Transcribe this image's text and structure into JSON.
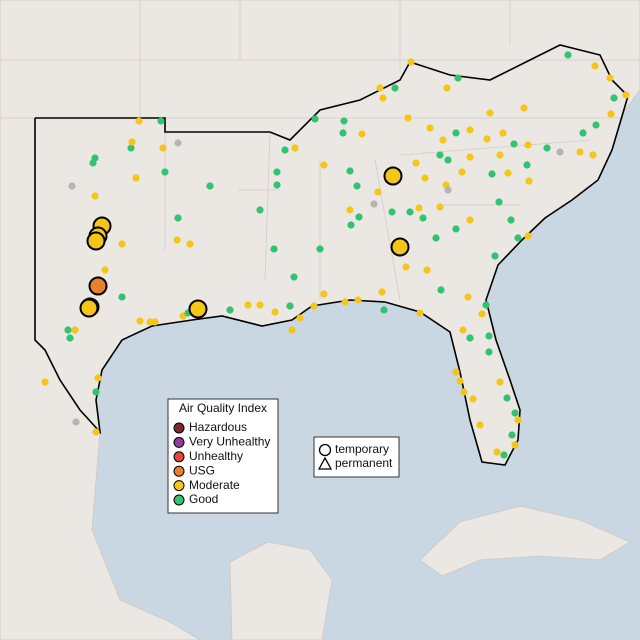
{
  "legend": {
    "title": "Air Quality Index",
    "items": [
      {
        "name": "Hazardous",
        "color": "#7e2a2a"
      },
      {
        "name": "Very Unhealthy",
        "color": "#8f3f97"
      },
      {
        "name": "Unhealthy",
        "color": "#e8443a"
      },
      {
        "name": "USG",
        "color": "#e8812a"
      },
      {
        "name": "Moderate",
        "color": "#f5c518"
      },
      {
        "name": "Good",
        "color": "#33c26f"
      }
    ]
  },
  "shape_legend": {
    "items": [
      "temporary",
      "permanent"
    ]
  }
}
